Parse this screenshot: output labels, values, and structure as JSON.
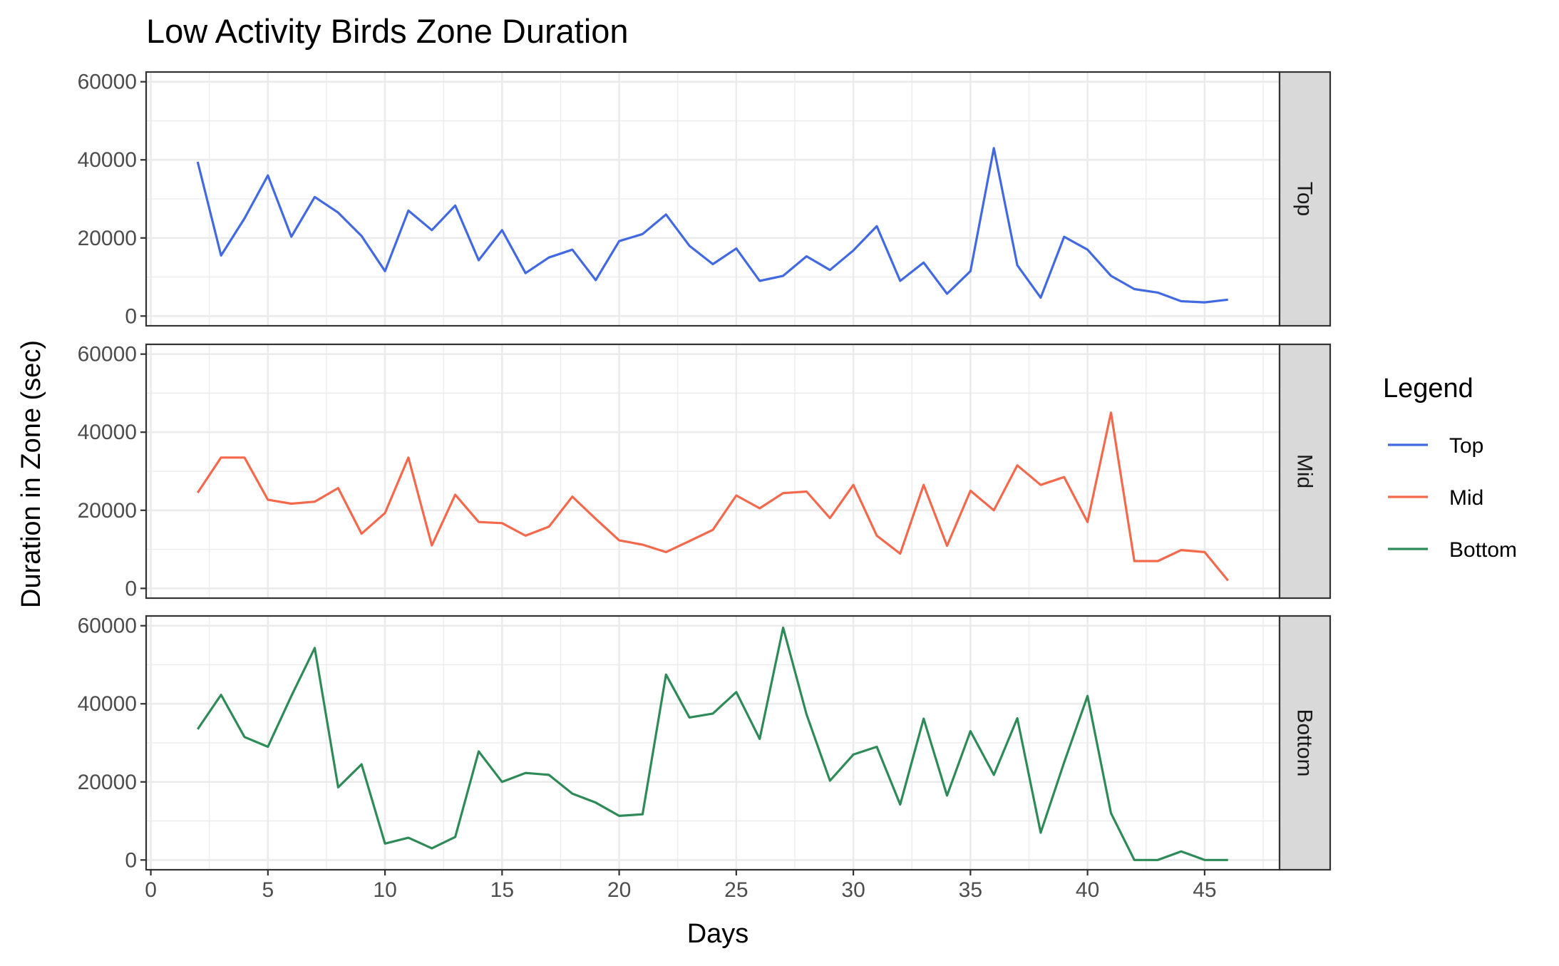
{
  "chart_data": {
    "type": "line",
    "title": "Low Activity Birds Zone Duration",
    "xlabel": "Days",
    "ylabel": "Duration in Zone (sec)",
    "xlim": [
      -0.2,
      48.2
    ],
    "ylim": [
      -2500,
      62500
    ],
    "x_ticks": [
      0,
      5,
      10,
      15,
      20,
      25,
      30,
      35,
      40,
      45
    ],
    "y_ticks": [
      0,
      20000,
      40000,
      60000
    ],
    "grid": true,
    "facets": [
      "Top",
      "Mid",
      "Bottom"
    ],
    "legend": {
      "title": "Legend",
      "position": "right",
      "entries": [
        "Top",
        "Mid",
        "Bottom"
      ]
    },
    "x": [
      2,
      3,
      4,
      5,
      6,
      7,
      8,
      9,
      10,
      11,
      12,
      13,
      14,
      15,
      16,
      17,
      18,
      19,
      20,
      21,
      22,
      23,
      24,
      25,
      26,
      27,
      28,
      29,
      30,
      31,
      32,
      33,
      34,
      35,
      36,
      37,
      38,
      39,
      40,
      41,
      42,
      43,
      44,
      45,
      46
    ],
    "series": [
      {
        "name": "Top",
        "color": "#4169e1",
        "values": [
          39500,
          15500,
          25000,
          36000,
          20300,
          30500,
          26500,
          20500,
          11500,
          27000,
          22000,
          28300,
          14300,
          22000,
          11000,
          15000,
          17000,
          9200,
          19200,
          21000,
          26000,
          18000,
          13300,
          17300,
          9000,
          10300,
          15300,
          11800,
          16800,
          23000,
          9000,
          13700,
          5700,
          11500,
          43000,
          13000,
          4700,
          20300,
          17000,
          10300,
          6900,
          6000,
          3800,
          3500,
          4200
        ]
      },
      {
        "name": "Mid",
        "color": "#f4694c",
        "values": [
          24500,
          33500,
          33500,
          22700,
          21700,
          22200,
          25700,
          14000,
          19300,
          33500,
          11000,
          24000,
          17000,
          16700,
          13500,
          15800,
          23500,
          17800,
          12300,
          11200,
          9300,
          12100,
          15000,
          23800,
          20500,
          24400,
          24800,
          18000,
          26500,
          13500,
          8900,
          26500,
          10900,
          25000,
          20000,
          31500,
          26500,
          28500,
          17000,
          45000,
          7000,
          7000,
          9800,
          9300,
          2000
        ]
      },
      {
        "name": "Bottom",
        "color": "#2e8b57",
        "values": [
          33500,
          42300,
          31500,
          29000,
          42000,
          54300,
          18600,
          24500,
          4200,
          5700,
          3000,
          5900,
          27800,
          20000,
          22300,
          21800,
          17000,
          14700,
          11300,
          11700,
          47500,
          36500,
          37500,
          43000,
          31000,
          59500,
          37300,
          20300,
          27000,
          29000,
          14200,
          36200,
          16500,
          33000,
          21800,
          36300,
          7000,
          25000,
          42000,
          12000,
          0,
          0,
          2200,
          0,
          0
        ]
      }
    ]
  }
}
